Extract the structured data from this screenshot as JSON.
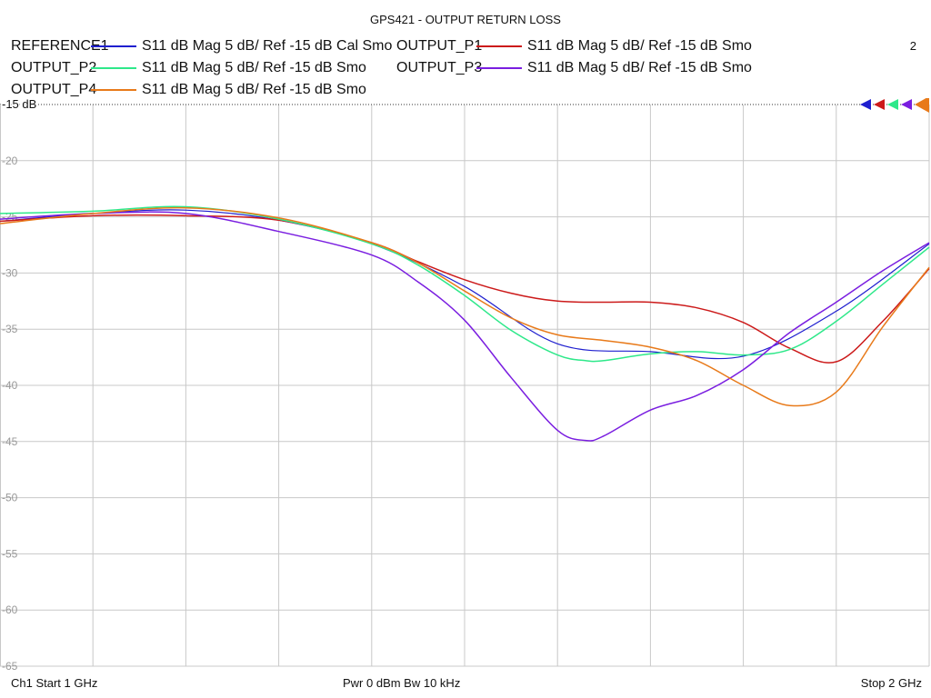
{
  "title": "GPS421 - OUTPUT RETURN LOSS",
  "channel_number": "2",
  "legend": [
    {
      "name": "REFERENCE1",
      "desc": "S11  dB Mag  5 dB/ Ref -15 dB  Cal Smo",
      "color": "#1f1fcf"
    },
    {
      "name": "OUTPUT_P1",
      "desc": "S11  dB Mag  5 dB/ Ref -15 dB  Smo",
      "color": "#cc1a1a"
    },
    {
      "name": "OUTPUT_P2",
      "desc": "S11  dB Mag  5 dB/ Ref -15 dB  Smo",
      "color": "#2ee88a"
    },
    {
      "name": "OUTPUT_P3",
      "desc": "S11  dB Mag  5 dB/ Ref -15 dB  Smo",
      "color": "#7a1ee0"
    },
    {
      "name": "OUTPUT_P4",
      "desc": "S11  dB Mag  5 dB/ Ref -15 dB  Smo",
      "color": "#e87a1a"
    }
  ],
  "footer": {
    "left": "Ch1  Start  1 GHz",
    "center": "Pwr  0 dBm  Bw  10 kHz",
    "right": "Stop  2 GHz"
  },
  "chart_data": {
    "type": "line",
    "title": "GPS421 - OUTPUT RETURN LOSS",
    "xlabel": "",
    "ylabel": "",
    "xlim": [
      1,
      2
    ],
    "ylim": [
      -65,
      -15
    ],
    "x_unit": "GHz",
    "y_unit": "dB",
    "y_ticks": [
      -15,
      -20,
      -25,
      -30,
      -35,
      -40,
      -45,
      -50,
      -55,
      -60,
      -65
    ],
    "y_tick_labels": [
      "-15 dB",
      "-20",
      "-25",
      "-30",
      "-35",
      "-40",
      "-45",
      "-50",
      "-55",
      "-60",
      "-65"
    ],
    "grid": true,
    "series": [
      {
        "name": "REFERENCE1",
        "color": "#1f1fcf",
        "x": [
          1.0,
          1.1,
          1.2,
          1.3,
          1.4,
          1.5,
          1.6,
          1.7,
          1.8,
          1.9,
          2.0
        ],
        "y": [
          -25.4,
          -24.7,
          -24.4,
          -25.3,
          -27.4,
          -31.2,
          -36.3,
          -37.0,
          -37.4,
          -33.4,
          -27.4
        ]
      },
      {
        "name": "OUTPUT_P1",
        "color": "#cc1a1a",
        "x": [
          1.0,
          1.1,
          1.2,
          1.3,
          1.4,
          1.45,
          1.5,
          1.55,
          1.6,
          1.65,
          1.7,
          1.75,
          1.8,
          1.85,
          1.9,
          1.95,
          2.0
        ],
        "y": [
          -25.4,
          -24.9,
          -24.9,
          -25.3,
          -27.3,
          -29.0,
          -30.6,
          -31.8,
          -32.5,
          -32.6,
          -32.6,
          -33.1,
          -34.4,
          -36.7,
          -37.9,
          -34.3,
          -29.6
        ],
        "line_width": 1.5
      },
      {
        "name": "OUTPUT_P2",
        "color": "#2ee88a",
        "x": [
          1.0,
          1.1,
          1.2,
          1.3,
          1.4,
          1.45,
          1.5,
          1.55,
          1.6,
          1.63,
          1.65,
          1.7,
          1.75,
          1.8,
          1.85,
          1.9,
          1.95,
          2.0
        ],
        "y": [
          -24.7,
          -24.5,
          -24.1,
          -25.2,
          -27.4,
          -29.3,
          -32.0,
          -35.1,
          -37.3,
          -37.8,
          -37.8,
          -37.2,
          -37.0,
          -37.3,
          -36.8,
          -34.3,
          -31.0,
          -27.7
        ],
        "line_width": 1.5
      },
      {
        "name": "OUTPUT_P3",
        "color": "#7a1ee0",
        "x": [
          1.0,
          1.1,
          1.2,
          1.3,
          1.4,
          1.45,
          1.5,
          1.55,
          1.6,
          1.63,
          1.65,
          1.7,
          1.75,
          1.8,
          1.85,
          1.9,
          1.95,
          2.0
        ],
        "y": [
          -25.2,
          -24.7,
          -24.7,
          -26.3,
          -28.4,
          -30.8,
          -34.2,
          -39.3,
          -44.0,
          -44.9,
          -44.5,
          -42.2,
          -40.9,
          -38.6,
          -35.3,
          -32.6,
          -29.8,
          -27.3
        ],
        "line_width": 1.5
      },
      {
        "name": "OUTPUT_P4",
        "color": "#e87a1a",
        "x": [
          1.0,
          1.1,
          1.2,
          1.3,
          1.4,
          1.45,
          1.5,
          1.55,
          1.6,
          1.65,
          1.7,
          1.75,
          1.8,
          1.85,
          1.9,
          1.95,
          2.0
        ],
        "y": [
          -25.6,
          -24.7,
          -24.2,
          -25.1,
          -27.3,
          -29.1,
          -31.6,
          -34.0,
          -35.5,
          -36.0,
          -36.6,
          -37.8,
          -40.0,
          -41.8,
          -40.6,
          -34.8,
          -29.5
        ],
        "line_width": 1.5
      }
    ]
  }
}
